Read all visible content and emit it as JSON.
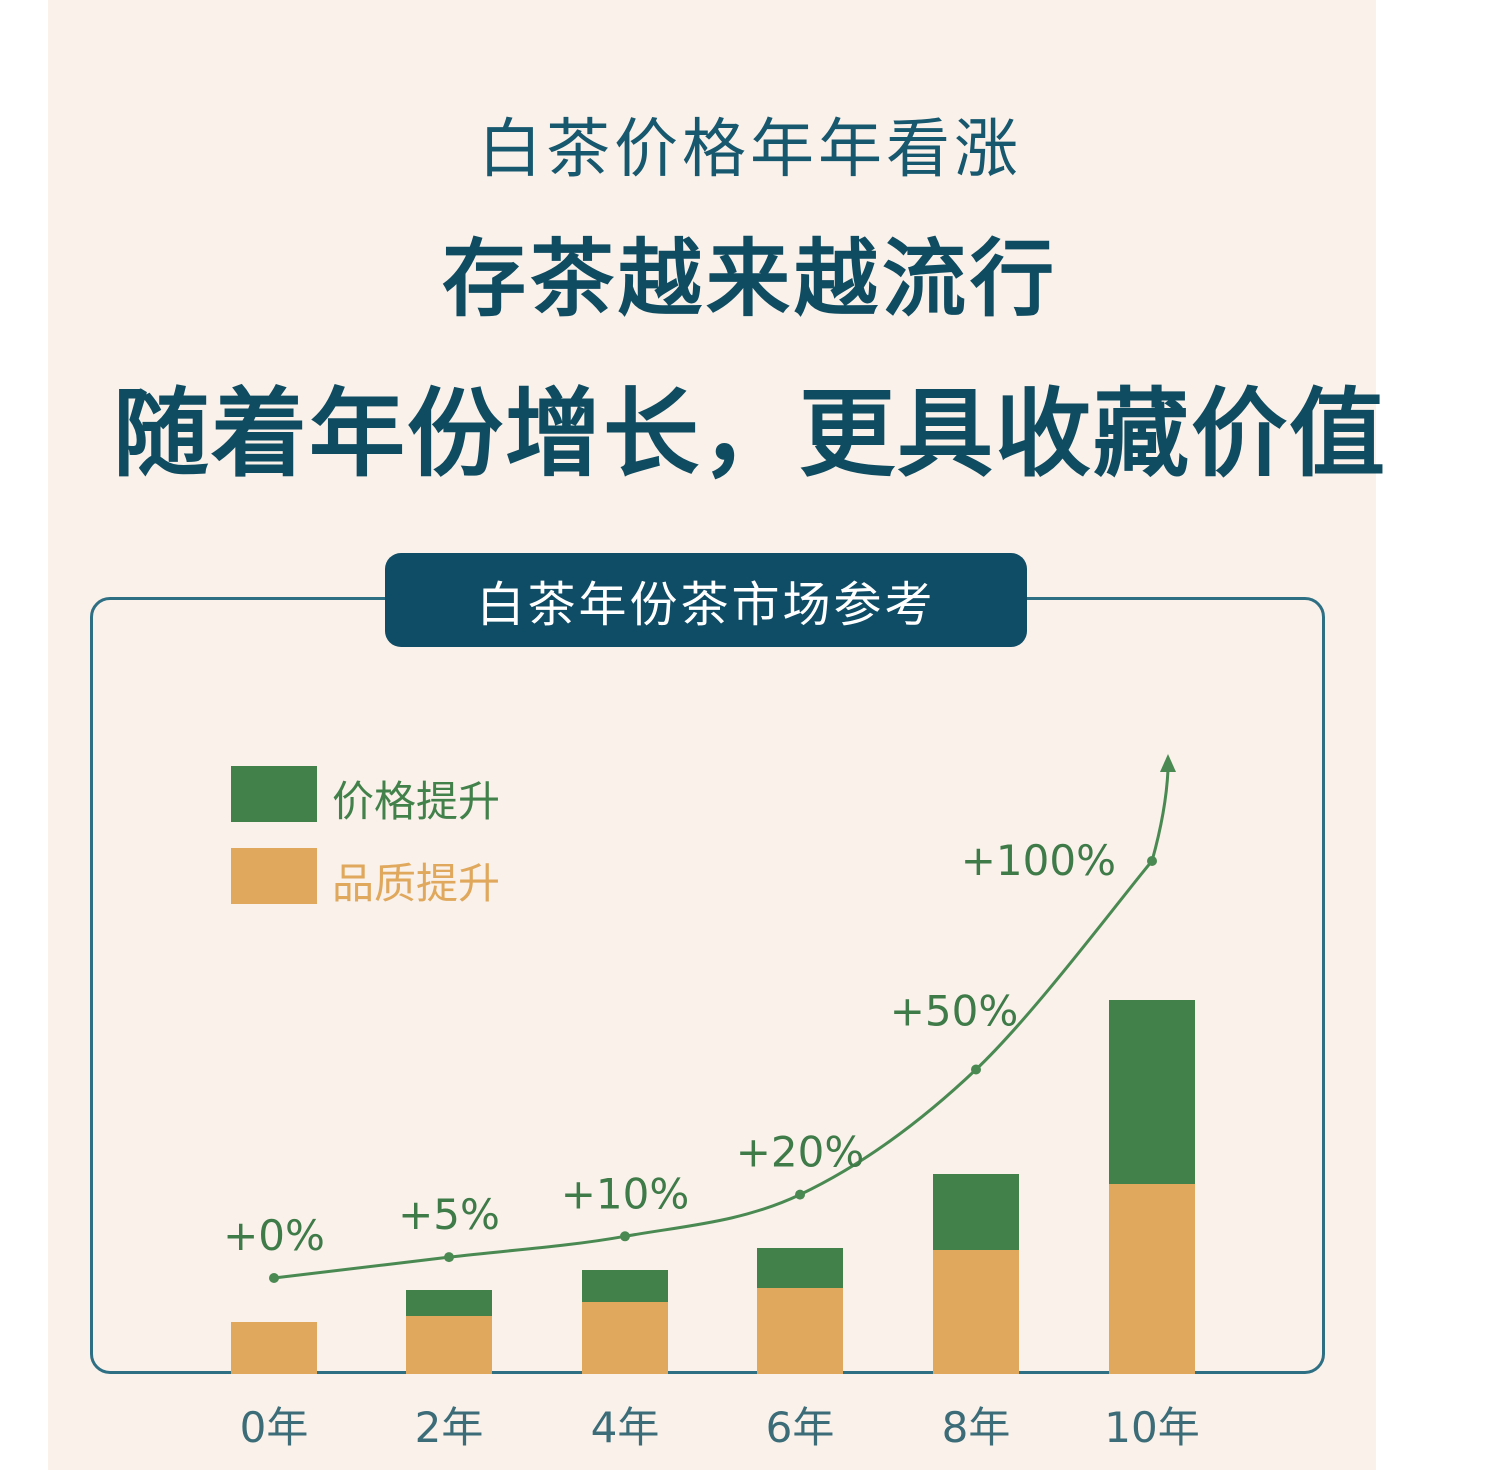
{
  "headline": {
    "line1": "白茶价格年年看涨",
    "line2": "存茶越来越流行",
    "line3": "随着年份增长，更具收藏价值"
  },
  "colors": {
    "background": "#f9f1ea",
    "title_blue": "#0f4c61",
    "price_green": "#43814b",
    "quality_orange": "#e0a85c",
    "curve_green": "#4a8a52"
  },
  "chart_data": {
    "type": "bar",
    "stacked": true,
    "title": "白茶年份茶市场参考",
    "categories": [
      "0年",
      "2年",
      "4年",
      "6年",
      "8年",
      "10年"
    ],
    "series": [
      {
        "name": "品质提升",
        "color": "#e0a85c",
        "values": [
          52,
          58,
          72,
          86,
          124,
          190
        ]
      },
      {
        "name": "价格提升",
        "color": "#43814b",
        "values": [
          0,
          26,
          32,
          40,
          76,
          184
        ]
      }
    ],
    "trend_line": {
      "labels": [
        "+0%",
        "+5%",
        "+10%",
        "+20%",
        "+50%",
        "+100%"
      ],
      "values": [
        0,
        5,
        10,
        20,
        50,
        100
      ],
      "arrow": true
    },
    "legend": {
      "position": "top-left"
    }
  }
}
